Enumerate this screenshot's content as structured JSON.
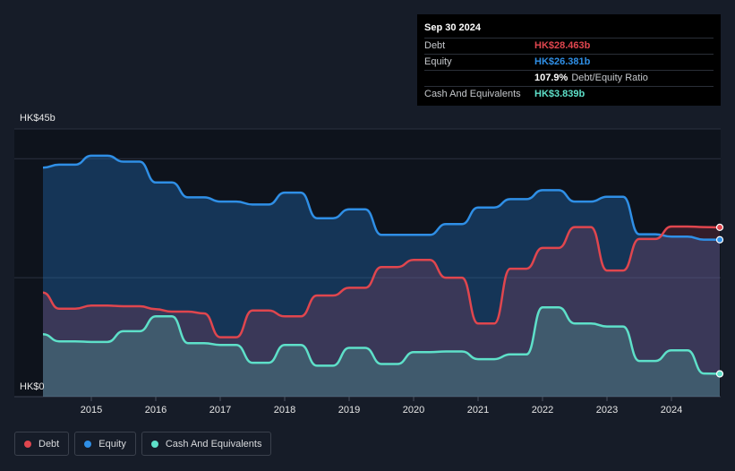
{
  "tooltip": {
    "date": "Sep 30 2024",
    "rows": [
      {
        "label": "Debt",
        "value": "HK$28.463b",
        "color": "#e0464e"
      },
      {
        "label": "Equity",
        "value": "HK$26.381b",
        "color": "#2f8fe6"
      },
      {
        "label": "",
        "value": "107.9%",
        "suffix": "Debt/Equity Ratio",
        "color": "#ffffff"
      },
      {
        "label": "Cash And Equivalents",
        "value": "HK$3.839b",
        "color": "#5ee0c9"
      }
    ]
  },
  "legend": [
    {
      "label": "Debt",
      "color": "#e0464e"
    },
    {
      "label": "Equity",
      "color": "#2f8fe6"
    },
    {
      "label": "Cash And Equivalents",
      "color": "#5ee0c9"
    }
  ],
  "chart_data": {
    "type": "area",
    "title": "",
    "xlabel": "",
    "ylabel": "",
    "y_top_label": "HK$45b",
    "y_bottom_label": "HK$0",
    "ylim": [
      0,
      45
    ],
    "xlim": [
      2014.25,
      2024.75
    ],
    "x_ticks": [
      "2015",
      "2016",
      "2017",
      "2018",
      "2019",
      "2020",
      "2021",
      "2022",
      "2023",
      "2024"
    ],
    "grid": true,
    "series": [
      {
        "name": "Equity",
        "color": "#2f8fe6",
        "points": [
          [
            2014.25,
            38.5
          ],
          [
            2014.5,
            39
          ],
          [
            2014.75,
            39
          ],
          [
            2015,
            40.5
          ],
          [
            2015.25,
            40.5
          ],
          [
            2015.5,
            39.5
          ],
          [
            2015.75,
            39.5
          ],
          [
            2016,
            36
          ],
          [
            2016.25,
            36
          ],
          [
            2016.5,
            33.5
          ],
          [
            2016.75,
            33.5
          ],
          [
            2017,
            32.8
          ],
          [
            2017.25,
            32.8
          ],
          [
            2017.5,
            32.3
          ],
          [
            2017.75,
            32.3
          ],
          [
            2018,
            34.3
          ],
          [
            2018.25,
            34.3
          ],
          [
            2018.5,
            30
          ],
          [
            2018.75,
            30
          ],
          [
            2019,
            31.5
          ],
          [
            2019.25,
            31.5
          ],
          [
            2019.5,
            27.2
          ],
          [
            2019.75,
            27.2
          ],
          [
            2020,
            27.2
          ],
          [
            2020.25,
            27.2
          ],
          [
            2020.5,
            29
          ],
          [
            2020.75,
            29
          ],
          [
            2021,
            31.8
          ],
          [
            2021.25,
            31.8
          ],
          [
            2021.5,
            33.2
          ],
          [
            2021.75,
            33.2
          ],
          [
            2022,
            34.7
          ],
          [
            2022.25,
            34.7
          ],
          [
            2022.5,
            32.8
          ],
          [
            2022.75,
            32.8
          ],
          [
            2023,
            33.6
          ],
          [
            2023.25,
            33.6
          ],
          [
            2023.5,
            27.3
          ],
          [
            2023.75,
            27.3
          ],
          [
            2024,
            26.9
          ],
          [
            2024.25,
            26.9
          ],
          [
            2024.5,
            26.4
          ],
          [
            2024.75,
            26.381
          ]
        ]
      },
      {
        "name": "Debt",
        "color": "#e0464e",
        "points": [
          [
            2014.25,
            17.5
          ],
          [
            2014.5,
            14.8
          ],
          [
            2014.75,
            14.8
          ],
          [
            2015,
            15.3
          ],
          [
            2015.25,
            15.3
          ],
          [
            2015.5,
            15.2
          ],
          [
            2015.75,
            15.2
          ],
          [
            2016,
            14.7
          ],
          [
            2016.25,
            14.3
          ],
          [
            2016.5,
            14.3
          ],
          [
            2016.75,
            14
          ],
          [
            2017,
            10
          ],
          [
            2017.25,
            10
          ],
          [
            2017.5,
            14.5
          ],
          [
            2017.75,
            14.5
          ],
          [
            2018,
            13.5
          ],
          [
            2018.25,
            13.5
          ],
          [
            2018.5,
            17
          ],
          [
            2018.75,
            17
          ],
          [
            2019,
            18.3
          ],
          [
            2019.25,
            18.3
          ],
          [
            2019.5,
            21.8
          ],
          [
            2019.75,
            21.8
          ],
          [
            2020,
            23
          ],
          [
            2020.25,
            23
          ],
          [
            2020.5,
            20
          ],
          [
            2020.75,
            20
          ],
          [
            2021,
            12.3
          ],
          [
            2021.25,
            12.3
          ],
          [
            2021.5,
            21.5
          ],
          [
            2021.75,
            21.5
          ],
          [
            2022,
            25
          ],
          [
            2022.25,
            25
          ],
          [
            2022.5,
            28.5
          ],
          [
            2022.75,
            28.5
          ],
          [
            2023,
            21.2
          ],
          [
            2023.25,
            21.2
          ],
          [
            2023.5,
            26.5
          ],
          [
            2023.75,
            26.5
          ],
          [
            2024,
            28.6
          ],
          [
            2024.25,
            28.6
          ],
          [
            2024.5,
            28.5
          ],
          [
            2024.75,
            28.463
          ]
        ]
      },
      {
        "name": "Cash And Equivalents",
        "color": "#5ee0c9",
        "points": [
          [
            2014.25,
            10.5
          ],
          [
            2014.5,
            9.3
          ],
          [
            2014.75,
            9.3
          ],
          [
            2015,
            9.2
          ],
          [
            2015.25,
            9.2
          ],
          [
            2015.5,
            11
          ],
          [
            2015.75,
            11
          ],
          [
            2016,
            13.5
          ],
          [
            2016.25,
            13.5
          ],
          [
            2016.5,
            9
          ],
          [
            2016.75,
            9
          ],
          [
            2017,
            8.7
          ],
          [
            2017.25,
            8.7
          ],
          [
            2017.5,
            5.7
          ],
          [
            2017.75,
            5.7
          ],
          [
            2018,
            8.7
          ],
          [
            2018.25,
            8.7
          ],
          [
            2018.5,
            5.2
          ],
          [
            2018.75,
            5.2
          ],
          [
            2019,
            8.2
          ],
          [
            2019.25,
            8.2
          ],
          [
            2019.5,
            5.5
          ],
          [
            2019.75,
            5.5
          ],
          [
            2020,
            7.5
          ],
          [
            2020.25,
            7.5
          ],
          [
            2020.5,
            7.6
          ],
          [
            2020.75,
            7.6
          ],
          [
            2021,
            6.3
          ],
          [
            2021.25,
            6.3
          ],
          [
            2021.5,
            7.1
          ],
          [
            2021.75,
            7.1
          ],
          [
            2022,
            15
          ],
          [
            2022.25,
            15
          ],
          [
            2022.5,
            12.3
          ],
          [
            2022.75,
            12.3
          ],
          [
            2023,
            11.8
          ],
          [
            2023.25,
            11.8
          ],
          [
            2023.5,
            6
          ],
          [
            2023.75,
            6
          ],
          [
            2024,
            7.8
          ],
          [
            2024.25,
            7.8
          ],
          [
            2024.5,
            3.9
          ],
          [
            2024.75,
            3.839
          ]
        ]
      }
    ]
  }
}
